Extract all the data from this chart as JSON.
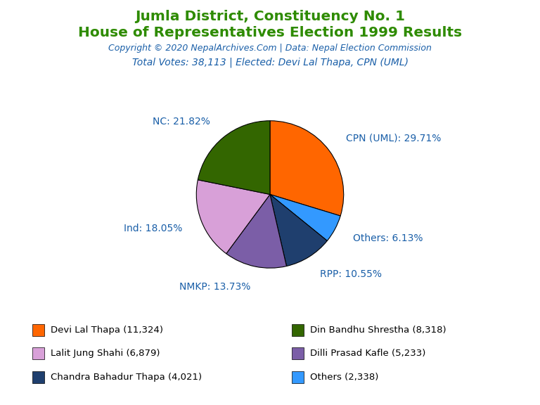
{
  "title1": "Jumla District, Constituency No. 1",
  "title2": "House of Representatives Election 1999 Results",
  "copyright": "Copyright © 2020 NepalArchives.Com | Data: Nepal Election Commission",
  "subtitle": "Total Votes: 38,113 | Elected: Devi Lal Thapa, CPN (UML)",
  "title1_color": "#2e8b00",
  "title2_color": "#2e8b00",
  "copyright_color": "#1a5fa8",
  "subtitle_color": "#1a5fa8",
  "slices": [
    {
      "label": "CPN (UML): 29.71%",
      "value": 11324,
      "color": "#ff6600",
      "pct": 29.71
    },
    {
      "label": "Others: 6.13%",
      "value": 2338,
      "color": "#3399ff",
      "pct": 6.13
    },
    {
      "label": "RPP: 10.55%",
      "value": 4021,
      "color": "#1f3f6e",
      "pct": 10.55
    },
    {
      "label": "NMKP: 13.73%",
      "value": 5233,
      "color": "#7b5ea7",
      "pct": 13.73
    },
    {
      "label": "Ind: 18.05%",
      "value": 6879,
      "color": "#d8a0d8",
      "pct": 18.05
    },
    {
      "label": "NC: 21.82%",
      "value": 8318,
      "color": "#336600",
      "pct": 21.82
    }
  ],
  "legend_items": [
    {
      "label": "Devi Lal Thapa (11,324)",
      "color": "#ff6600"
    },
    {
      "label": "Lalit Jung Shahi (6,879)",
      "color": "#d8a0d8"
    },
    {
      "label": "Chandra Bahadur Thapa (4,021)",
      "color": "#1f3f6e"
    },
    {
      "label": "Din Bandhu Shrestha (8,318)",
      "color": "#336600"
    },
    {
      "label": "Dilli Prasad Kafle (5,233)",
      "color": "#7b5ea7"
    },
    {
      "label": "Others (2,338)",
      "color": "#3399ff"
    }
  ],
  "label_color": "#1a5fa8",
  "background_color": "#ffffff",
  "label_positions": {
    "CPN (UML): 29.71%": [
      0.0,
      1.3
    ],
    "Others: 6.13%": [
      1.3,
      0.42
    ],
    "RPP: 10.55%": [
      1.35,
      -0.2
    ],
    "NMKP: 13.73%": [
      1.1,
      -0.78
    ],
    "Ind: 18.05%": [
      -0.1,
      -1.35
    ],
    "NC: 21.82%": [
      -1.42,
      -0.08
    ]
  }
}
